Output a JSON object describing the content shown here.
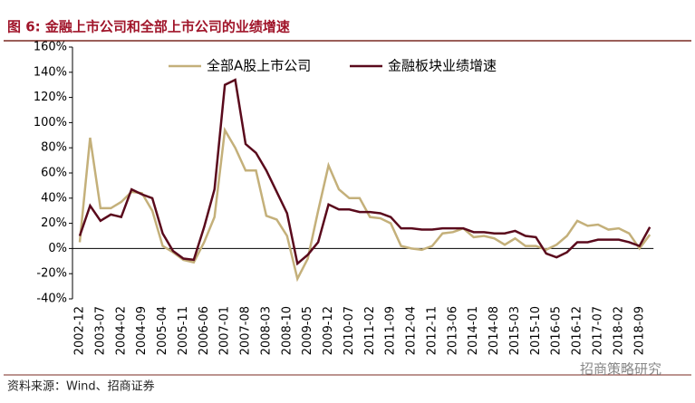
{
  "chart_data": {
    "type": "line",
    "title": "图 6:  金融上市公司和全部上市公司的业绩增速",
    "source": "资料来源：Wind、招商证券",
    "watermark": "招商策略研究",
    "categories": [
      "2002-12",
      null,
      "2003-07",
      null,
      "2004-02",
      null,
      "2004-09",
      null,
      "2005-04",
      null,
      "2005-11",
      null,
      "2006-06",
      null,
      "2007-01",
      null,
      "2007-08",
      null,
      "2008-03",
      null,
      "2008-10",
      null,
      "2009-05",
      null,
      "2009-12",
      null,
      "2010-07",
      null,
      "2011-02",
      null,
      "2011-09",
      null,
      "2012-04",
      null,
      "2012-11",
      null,
      "2013-06",
      null,
      "2014-01",
      null,
      "2014-08",
      null,
      "2015-03",
      null,
      "2015-10",
      null,
      "2016-05",
      null,
      "2016-12",
      null,
      "2017-07",
      null,
      "2018-02",
      null,
      "2018-09",
      null
    ],
    "series": [
      {
        "name": "全部A股上市公司",
        "color": "#c4b07a",
        "values": [
          5,
          88,
          32,
          32,
          37,
          45,
          44,
          30,
          2,
          -3,
          -9,
          -11,
          5,
          25,
          94,
          80,
          62,
          62,
          26,
          23,
          10,
          -24,
          -8,
          30,
          66,
          47,
          40,
          40,
          25,
          24,
          20,
          2,
          0,
          -1,
          2,
          12,
          13,
          16,
          9,
          10,
          8,
          3,
          8,
          2,
          2,
          -1,
          3,
          10,
          22,
          18,
          19,
          15,
          16,
          12,
          0,
          11
        ]
      },
      {
        "name": "金融板块业绩增速",
        "color": "#5a0a1c",
        "values": [
          10,
          34,
          22,
          27,
          25,
          47,
          43,
          40,
          12,
          -2,
          -8,
          -9,
          17,
          47,
          130,
          134,
          83,
          76,
          62,
          45,
          28,
          -12,
          -5,
          5,
          35,
          31,
          31,
          29,
          29,
          28,
          25,
          16,
          16,
          15,
          15,
          16,
          16,
          16,
          13,
          13,
          12,
          12,
          14,
          10,
          9,
          -4,
          -7,
          -3,
          5,
          5,
          7,
          7,
          7,
          5,
          2,
          17
        ]
      }
    ],
    "ylim": [
      -40,
      160
    ],
    "yticks": [
      {
        "value": -40,
        "label": "-40%"
      },
      {
        "value": -20,
        "label": "-20%"
      },
      {
        "value": 0,
        "label": "0%"
      },
      {
        "value": 20,
        "label": "20%"
      },
      {
        "value": 40,
        "label": "40%"
      },
      {
        "value": 60,
        "label": "60%"
      },
      {
        "value": 80,
        "label": "80%"
      },
      {
        "value": 100,
        "label": "100%"
      },
      {
        "value": 120,
        "label": "120%"
      },
      {
        "value": 140,
        "label": "140%"
      },
      {
        "value": 160,
        "label": "160%"
      }
    ],
    "grid": false,
    "legend": "top"
  }
}
